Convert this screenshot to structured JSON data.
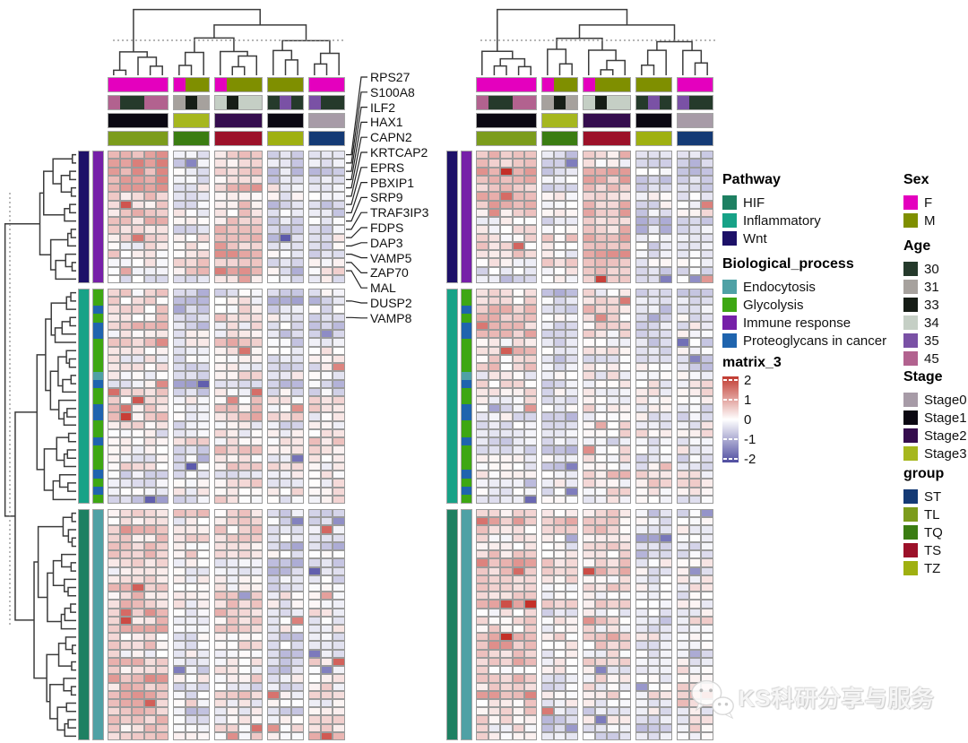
{
  "watermark": {
    "icon": "wechat-icon",
    "text": "KS科研分享与服务"
  },
  "legends": {
    "pathway": {
      "title": "Pathway",
      "items": [
        {
          "label": "HIF",
          "color": "#1E8062"
        },
        {
          "label": "Inflammatory",
          "color": "#17A287"
        },
        {
          "label": "Wnt",
          "color": "#1D1168"
        }
      ]
    },
    "biological_process": {
      "title": "Biological_process",
      "items": [
        {
          "label": "Endocytosis",
          "color": "#4FA1A5"
        },
        {
          "label": "Glycolysis",
          "color": "#3EA713"
        },
        {
          "label": "Immune response",
          "color": "#7620A8"
        },
        {
          "label": "Proteoglycans in cancer",
          "color": "#1F64AE"
        }
      ]
    },
    "matrix": {
      "title": "matrix_3",
      "ticks": [
        "2",
        "1",
        "0",
        "-1",
        "-2"
      ],
      "max_color": "#C13A30",
      "mid_color": "#FFFFFF",
      "min_color": "#4F4DA0"
    },
    "sex": {
      "title": "Sex",
      "items": [
        {
          "label": "F",
          "color": "#E400BE"
        },
        {
          "label": "M",
          "color": "#7F8F00"
        }
      ]
    },
    "age": {
      "title": "Age",
      "items": [
        {
          "label": "30",
          "color": "#253A2B"
        },
        {
          "label": "31",
          "color": "#A6A19D"
        },
        {
          "label": "33",
          "color": "#161D16"
        },
        {
          "label": "34",
          "color": "#C5CFC5"
        },
        {
          "label": "35",
          "color": "#7A51A5"
        },
        {
          "label": "45",
          "color": "#B2628F"
        }
      ]
    },
    "stage": {
      "title": "Stage",
      "items": [
        {
          "label": "Stage0",
          "color": "#A79BA7"
        },
        {
          "label": "Stage1",
          "color": "#0B0812"
        },
        {
          "label": "Stage2",
          "color": "#350D4E"
        },
        {
          "label": "Stage3",
          "color": "#A6B71E"
        }
      ]
    },
    "group": {
      "title": "group",
      "items": [
        {
          "label": "ST",
          "color": "#143A75"
        },
        {
          "label": "TL",
          "color": "#7C9C1C"
        },
        {
          "label": "TQ",
          "color": "#3B7D12"
        },
        {
          "label": "TS",
          "color": "#9C1129"
        },
        {
          "label": "TZ",
          "color": "#9FB011"
        }
      ]
    }
  },
  "chart_data": {
    "type": "heatmap",
    "panels": 2,
    "value_range": [
      -2,
      2
    ],
    "columns_per_slice": [
      5,
      3,
      4,
      3,
      3
    ],
    "column_annotations": {
      "Sex": [
        "F",
        "F",
        "F",
        "F",
        "F",
        "F",
        "M",
        "M",
        "F",
        "M",
        "M",
        "M",
        "M",
        "M",
        "M",
        "F",
        "F",
        "F"
      ],
      "Age": [
        "45",
        "30",
        "30",
        "45",
        "45",
        "31",
        "33",
        "31",
        "34",
        "33",
        "34",
        "34",
        "30",
        "35",
        "30",
        "35",
        "30",
        "30"
      ],
      "Stage": [
        "Stage1",
        "Stage1",
        "Stage1",
        "Stage1",
        "Stage1",
        "Stage3",
        "Stage3",
        "Stage3",
        "Stage2",
        "Stage2",
        "Stage2",
        "Stage2",
        "Stage1",
        "Stage1",
        "Stage1",
        "Stage0",
        "Stage0",
        "Stage0"
      ],
      "group": [
        "TL",
        "TL",
        "TL",
        "TL",
        "TL",
        "TQ",
        "TQ",
        "TQ",
        "TS",
        "TS",
        "TS",
        "TS",
        "TZ",
        "TZ",
        "TZ",
        "ST",
        "ST",
        "ST"
      ]
    },
    "row_blocks": [
      {
        "rows": 16,
        "pathway": "Wnt",
        "biological_process": [
          "Immune response",
          "Immune response",
          "Immune response",
          "Immune response",
          "Immune response",
          "Immune response",
          "Immune response",
          "Immune response",
          "Immune response",
          "Immune response",
          "Immune response",
          "Immune response",
          "Immune response",
          "Immune response",
          "Immune response",
          "Immune response"
        ],
        "slice_means": [
          [
            1.2,
            -0.2
          ],
          [
            -0.45,
            0.3
          ],
          [
            0.5,
            0.9
          ],
          [
            -0.55,
            -0.25
          ],
          [
            -0.45,
            -0.2
          ]
        ]
      },
      {
        "rows": 26,
        "pathway": "Inflammatory",
        "biological_process": [
          "Glycolysis",
          "Glycolysis",
          "Proteoglycans in cancer",
          "Glycolysis",
          "Proteoglycans in cancer",
          "Proteoglycans in cancer",
          "Glycolysis",
          "Glycolysis",
          "Glycolysis",
          "Glycolysis",
          "Endocytosis",
          "Proteoglycans in cancer",
          "Glycolysis",
          "Glycolysis",
          "Proteoglycans in cancer",
          "Proteoglycans in cancer",
          "Glycolysis",
          "Glycolysis",
          "Proteoglycans in cancer",
          "Glycolysis",
          "Glycolysis",
          "Glycolysis",
          "Proteoglycans in cancer",
          "Glycolysis",
          "Proteoglycans in cancer",
          "Glycolysis"
        ],
        "slice_means": [
          [
            0.55,
            -0.3
          ],
          [
            -0.5,
            -0.2
          ],
          [
            0.15,
            0.1
          ],
          [
            -0.55,
            0.15
          ],
          [
            -0.35,
            0.2
          ]
        ]
      },
      {
        "rows": 28,
        "pathway": "HIF",
        "biological_process": [
          "Endocytosis",
          "Endocytosis",
          "Endocytosis",
          "Endocytosis",
          "Endocytosis",
          "Endocytosis",
          "Endocytosis",
          "Endocytosis",
          "Endocytosis",
          "Endocytosis",
          "Endocytosis",
          "Endocytosis",
          "Endocytosis",
          "Endocytosis",
          "Endocytosis",
          "Endocytosis",
          "Endocytosis",
          "Endocytosis",
          "Endocytosis",
          "Endocytosis",
          "Endocytosis",
          "Endocytosis",
          "Endocytosis",
          "Endocytosis",
          "Endocytosis",
          "Endocytosis",
          "Endocytosis",
          "Endocytosis"
        ],
        "slice_means": [
          [
            0.5,
            0.55
          ],
          [
            0.3,
            -0.25
          ],
          [
            0.35,
            0.1
          ],
          [
            -0.5,
            -0.15
          ],
          [
            -0.4,
            0.3
          ]
        ]
      }
    ],
    "marked_genes": [
      "RPS27",
      "S100A8",
      "ILF2",
      "HAX1",
      "CAPN2",
      "KRTCAP2",
      "EPRS",
      "PBXIP1",
      "SRP9",
      "TRAF3IP3",
      "FDPS",
      "DAP3",
      "VAMP5",
      "ZAP70",
      "MAL",
      "DUSP2",
      "VAMP8"
    ],
    "cell_palette": {
      "positive": "#C43028",
      "negative": "#504EA5",
      "zero": "#FFFFFF"
    }
  }
}
